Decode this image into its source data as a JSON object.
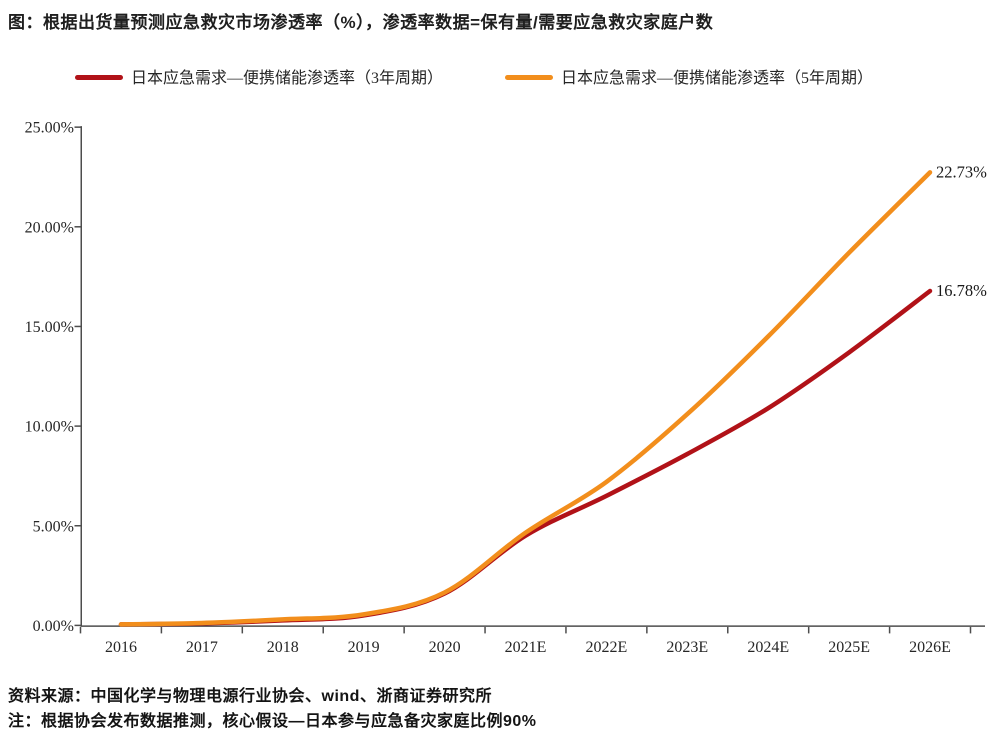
{
  "figure": {
    "title": "图：根据出货量预测应急救灾市场渗透率（%），渗透率数据=保有量/需要应急救灾家庭户数",
    "source": "资料来源：中国化学与物理电源行业协会、wind、浙商证券研究所",
    "note": "注：根据协会发布数据推测，核心假设—日本参与应急备灾家庭比例90%"
  },
  "legend": {
    "cycle3": {
      "label": "日本应急需求—便携储能渗透率（3年周期）",
      "color": "#B11218"
    },
    "cycle5": {
      "label": "日本应急需求—便携储能渗透率（5年周期）",
      "color": "#F28E1C"
    }
  },
  "chart_data": {
    "type": "line",
    "title": "根据出货量预测应急救灾市场渗透率（%）",
    "categories": [
      "2016",
      "2017",
      "2018",
      "2019",
      "2020",
      "2021E",
      "2022E",
      "2023E",
      "2024E",
      "2025E",
      "2026E"
    ],
    "series": [
      {
        "key": "cycle3",
        "name": "日本应急需求—便携储能渗透率（3年周期）",
        "color": "#B11218",
        "values": [
          0.05,
          0.1,
          0.25,
          0.5,
          1.6,
          4.5,
          6.5,
          8.6,
          10.9,
          13.7,
          16.78
        ],
        "end_label": "16.78%"
      },
      {
        "key": "cycle5",
        "name": "日本应急需求—便携储能渗透率（5年周期）",
        "color": "#F28E1C",
        "values": [
          0.05,
          0.12,
          0.3,
          0.55,
          1.65,
          4.65,
          7.2,
          10.6,
          14.5,
          18.7,
          22.73
        ],
        "end_label": "22.73%"
      }
    ],
    "y_ticks": [
      "0.00%",
      "5.00%",
      "10.00%",
      "15.00%",
      "20.00%",
      "25.00%"
    ],
    "ylim": [
      0,
      25
    ],
    "y_tick_step": 5,
    "xlabel": "",
    "ylabel": "",
    "grid": false,
    "legend_position": "top",
    "axis_color": "#4D4D4D",
    "text_color": "#262626",
    "label_color": "#1A1A1A"
  }
}
